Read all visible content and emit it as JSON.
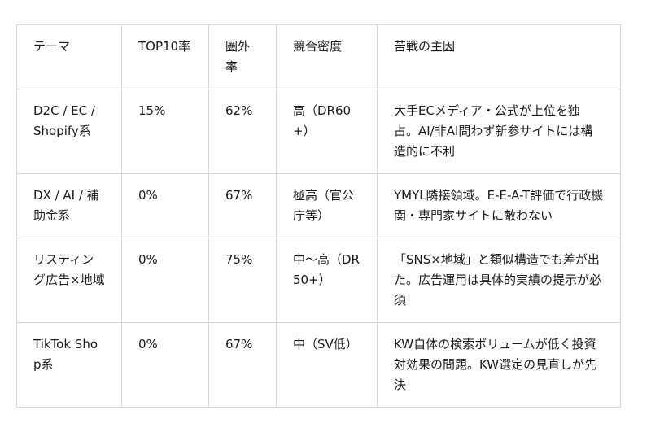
{
  "table": {
    "headers": [
      "テーマ",
      "TOP10率",
      "圏外率",
      "競合密度",
      "苦戦の主因"
    ],
    "rows": [
      [
        "D2C / EC / Shopify系",
        "15%",
        "62%",
        "高（DR60+）",
        "大手ECメディア・公式が上位を独占。AI/非AI問わず新参サイトには構造的に不利"
      ],
      [
        "DX / AI / 補助金系",
        "0%",
        "67%",
        "極高（官公庁等）",
        "YMYL隣接領域。E-E-A-T評価で行政機関・専門家サイトに敵わない"
      ],
      [
        "リスティング広告×地域",
        "0%",
        "75%",
        "中〜高（DR50+）",
        "「SNS×地域」と類似構造でも差が出た。広告運用は具体的実績の提示が必須"
      ],
      [
        "TikTok Shop系",
        "0%",
        "67%",
        "中（SV低）",
        "KW自体の検索ボリュームが低く投資対効果の問題。KW選定の見直しが先決"
      ]
    ]
  }
}
